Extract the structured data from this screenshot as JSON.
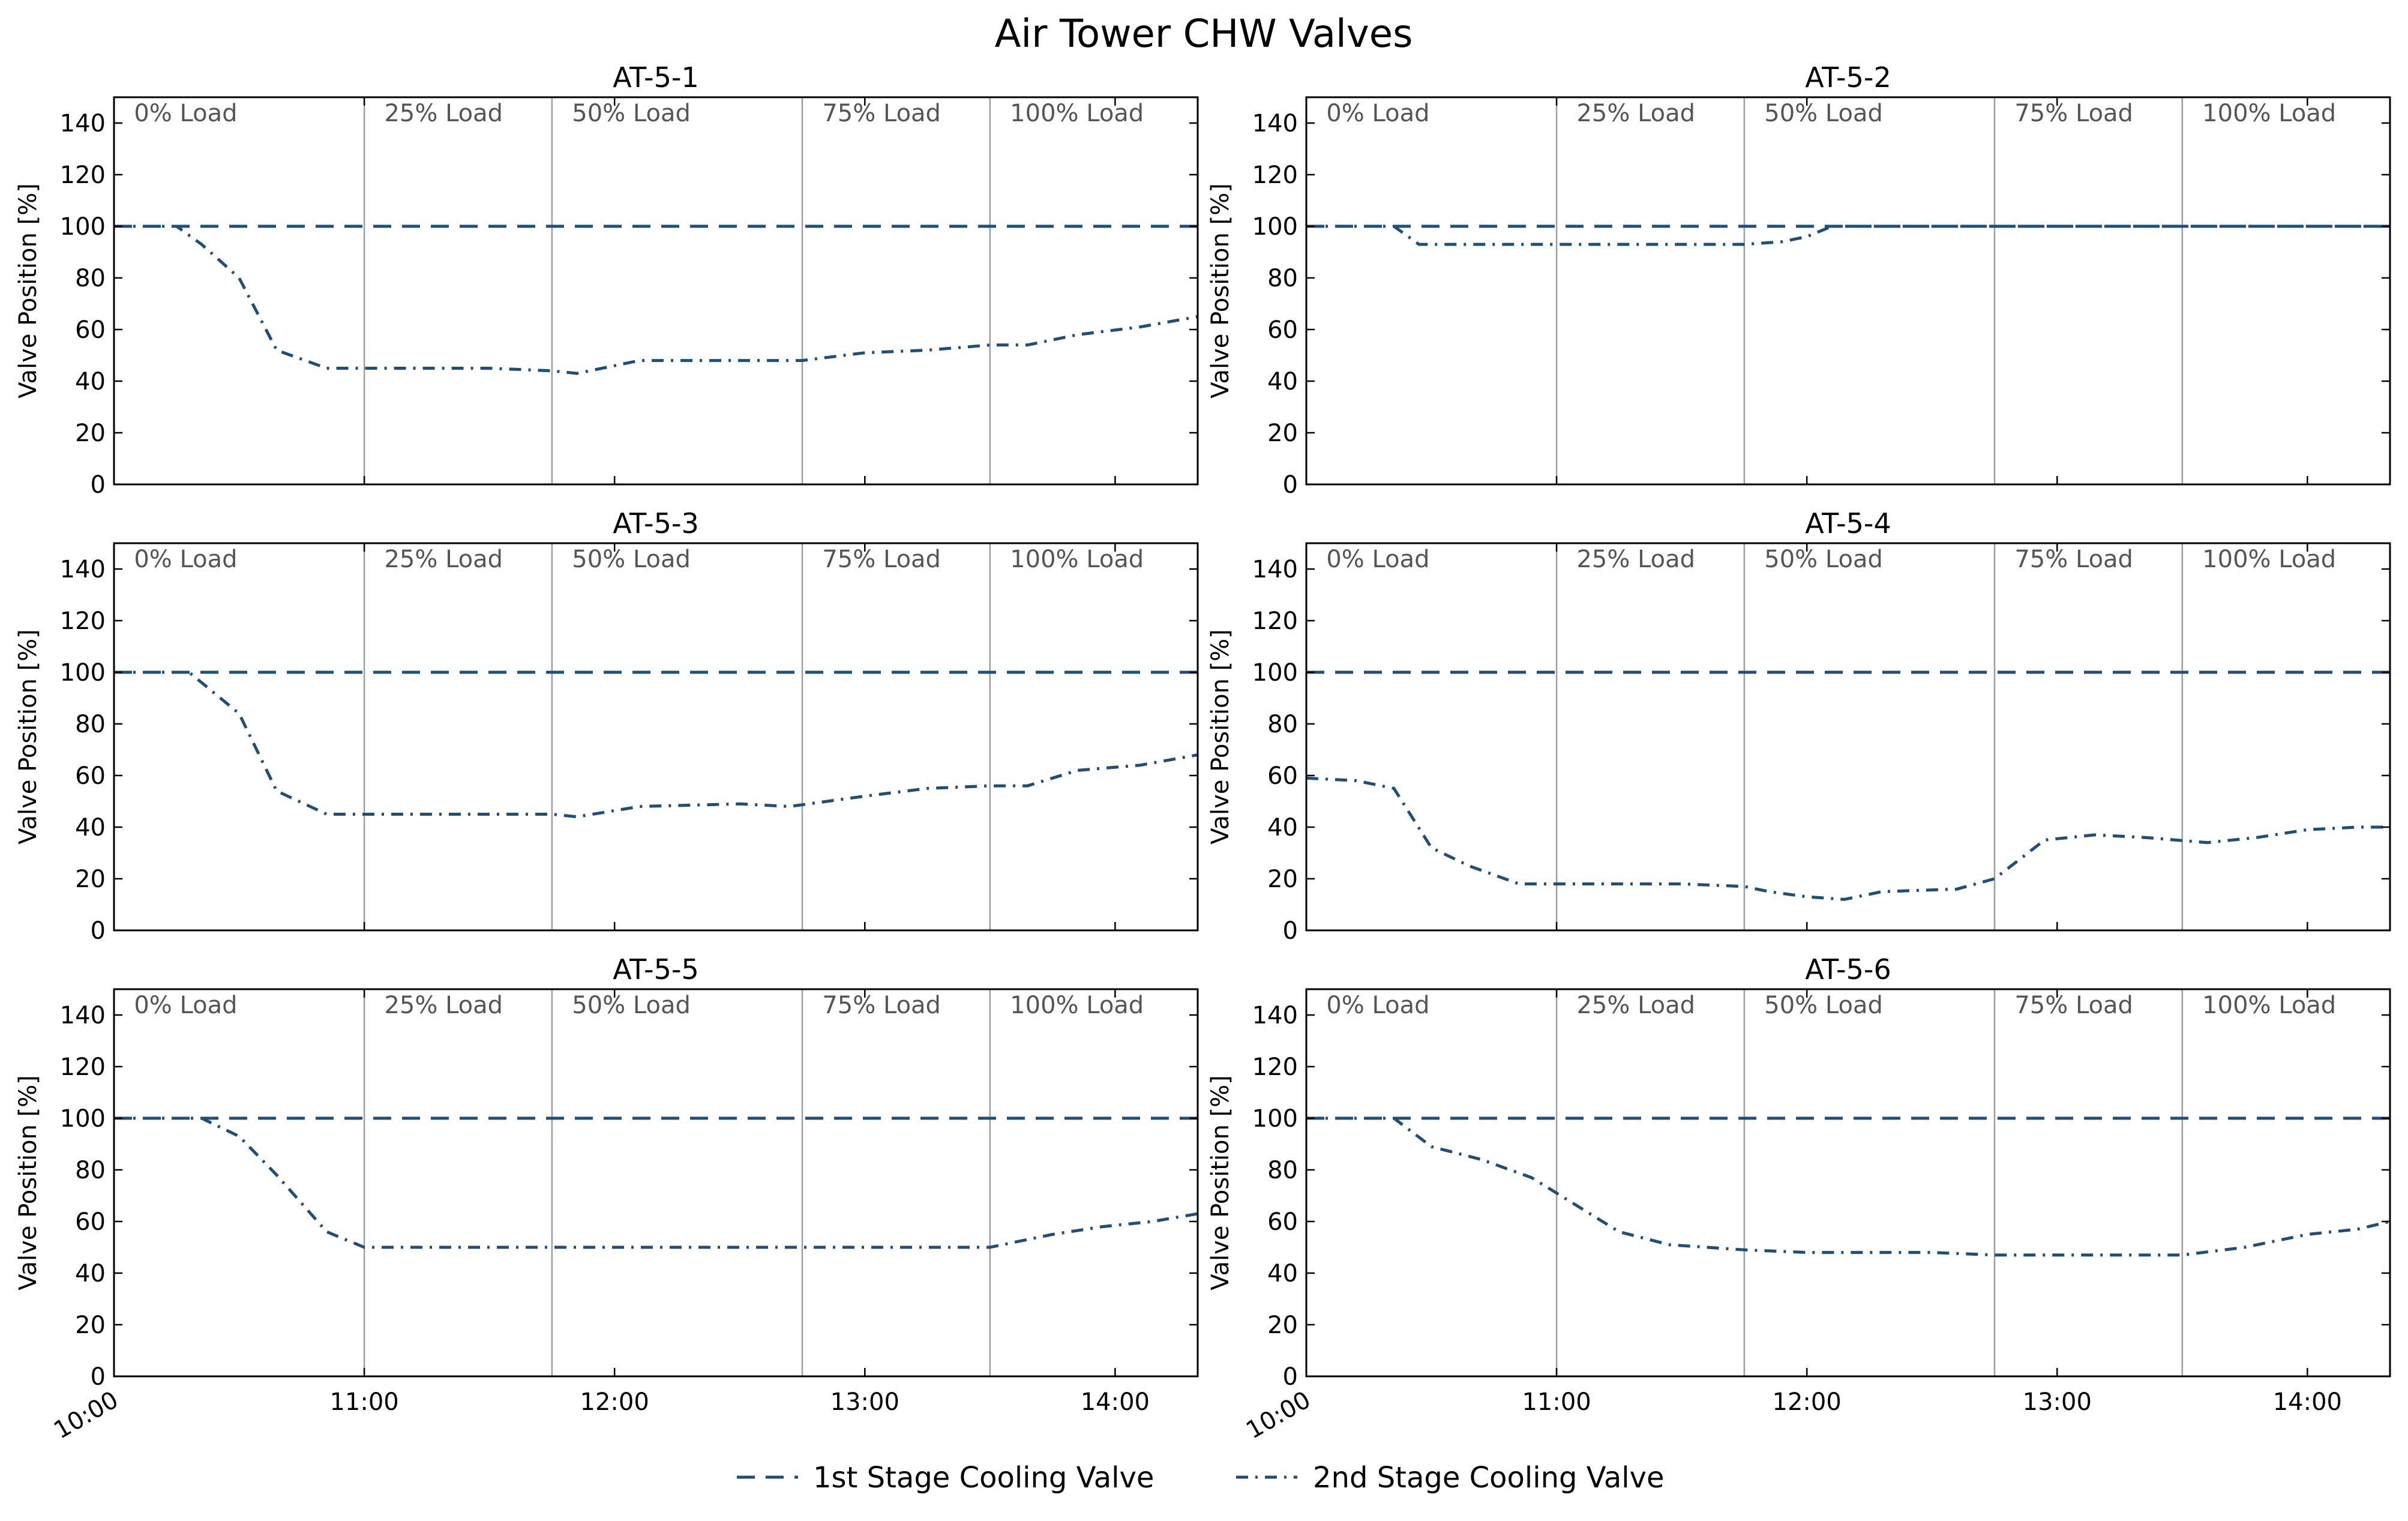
{
  "chart_data": {
    "title": "Air Tower CHW Valves",
    "type": "line",
    "ylabel": "Valve Position [%]",
    "ylim": [
      0,
      150
    ],
    "yticks": [
      0,
      20,
      40,
      60,
      80,
      100,
      120,
      140
    ],
    "xlim_hours": [
      10.0,
      14.33
    ],
    "xticks": [
      {
        "v": 10,
        "label": "10:00",
        "rotated": true
      },
      {
        "v": 11,
        "label": "11:00",
        "rotated": false
      },
      {
        "v": 12,
        "label": "12:00",
        "rotated": false
      },
      {
        "v": 13,
        "label": "13:00",
        "rotated": false
      },
      {
        "v": 14,
        "label": "14:00",
        "rotated": false
      }
    ],
    "load_lines": [
      11.0,
      11.75,
      12.75,
      13.5
    ],
    "load_labels": [
      {
        "x": 10.08,
        "text": "0% Load"
      },
      {
        "x": 11.08,
        "text": "25% Load"
      },
      {
        "x": 11.83,
        "text": "50% Load"
      },
      {
        "x": 12.83,
        "text": "75% Load"
      },
      {
        "x": 13.58,
        "text": "100% Load"
      }
    ],
    "series_names": [
      "1st Stage Cooling Valve",
      "2nd Stage Cooling Valve"
    ],
    "color": "#1f4e79",
    "grid": false,
    "legend_position": "bottom-center",
    "subplots": [
      {
        "title": "AT-5-1",
        "stage1": [
          [
            10.0,
            100
          ],
          [
            14.33,
            100
          ]
        ],
        "stage2": [
          [
            10.0,
            100
          ],
          [
            10.25,
            100
          ],
          [
            10.35,
            93
          ],
          [
            10.5,
            80
          ],
          [
            10.65,
            52
          ],
          [
            10.85,
            45
          ],
          [
            11.25,
            45
          ],
          [
            11.5,
            45
          ],
          [
            11.75,
            44
          ],
          [
            11.85,
            43
          ],
          [
            12.1,
            48
          ],
          [
            12.5,
            48
          ],
          [
            12.75,
            48
          ],
          [
            13.0,
            51
          ],
          [
            13.25,
            52
          ],
          [
            13.5,
            54
          ],
          [
            13.65,
            54
          ],
          [
            13.85,
            58
          ],
          [
            14.1,
            61
          ],
          [
            14.33,
            65
          ]
        ]
      },
      {
        "title": "AT-5-2",
        "stage1": [
          [
            10.0,
            100
          ],
          [
            14.33,
            100
          ]
        ],
        "stage2": [
          [
            10.0,
            100
          ],
          [
            10.35,
            100
          ],
          [
            10.45,
            93
          ],
          [
            10.7,
            93
          ],
          [
            11.5,
            93
          ],
          [
            11.75,
            93
          ],
          [
            11.9,
            94
          ],
          [
            12.0,
            96
          ],
          [
            12.1,
            100
          ],
          [
            14.33,
            100
          ]
        ]
      },
      {
        "title": "AT-5-3",
        "stage1": [
          [
            10.0,
            100
          ],
          [
            14.33,
            100
          ]
        ],
        "stage2": [
          [
            10.0,
            100
          ],
          [
            10.3,
            100
          ],
          [
            10.35,
            96
          ],
          [
            10.5,
            84
          ],
          [
            10.65,
            54
          ],
          [
            10.85,
            45
          ],
          [
            11.25,
            45
          ],
          [
            11.5,
            45
          ],
          [
            11.75,
            45
          ],
          [
            11.85,
            44
          ],
          [
            12.1,
            48
          ],
          [
            12.5,
            49
          ],
          [
            12.7,
            48
          ],
          [
            13.0,
            52
          ],
          [
            13.25,
            55
          ],
          [
            13.5,
            56
          ],
          [
            13.65,
            56
          ],
          [
            13.85,
            62
          ],
          [
            14.1,
            64
          ],
          [
            14.33,
            68
          ]
        ]
      },
      {
        "title": "AT-5-4",
        "stage1": [
          [
            10.0,
            100
          ],
          [
            14.33,
            100
          ]
        ],
        "stage2": [
          [
            10.0,
            59
          ],
          [
            10.2,
            58
          ],
          [
            10.35,
            55
          ],
          [
            10.5,
            32
          ],
          [
            10.65,
            25
          ],
          [
            10.85,
            18
          ],
          [
            11.5,
            18
          ],
          [
            11.75,
            17
          ],
          [
            11.85,
            15
          ],
          [
            12.0,
            13
          ],
          [
            12.15,
            12
          ],
          [
            12.3,
            15
          ],
          [
            12.6,
            16
          ],
          [
            12.75,
            20
          ],
          [
            12.95,
            35
          ],
          [
            13.15,
            37
          ],
          [
            13.35,
            36
          ],
          [
            13.6,
            34
          ],
          [
            13.8,
            36
          ],
          [
            14.0,
            39
          ],
          [
            14.2,
            40
          ],
          [
            14.33,
            40
          ]
        ]
      },
      {
        "title": "AT-5-5",
        "stage1": [
          [
            10.0,
            100
          ],
          [
            14.33,
            100
          ]
        ],
        "stage2": [
          [
            10.0,
            100
          ],
          [
            10.35,
            100
          ],
          [
            10.5,
            93
          ],
          [
            10.65,
            78
          ],
          [
            10.85,
            56
          ],
          [
            11.0,
            50
          ],
          [
            11.5,
            50
          ],
          [
            12.0,
            50
          ],
          [
            12.5,
            50
          ],
          [
            13.0,
            50
          ],
          [
            13.5,
            50
          ],
          [
            13.75,
            55
          ],
          [
            13.95,
            58
          ],
          [
            14.15,
            60
          ],
          [
            14.33,
            63
          ]
        ]
      },
      {
        "title": "AT-5-6",
        "stage1": [
          [
            10.0,
            100
          ],
          [
            14.33,
            100
          ]
        ],
        "stage2": [
          [
            10.0,
            100
          ],
          [
            10.35,
            100
          ],
          [
            10.5,
            89
          ],
          [
            10.7,
            84
          ],
          [
            10.9,
            77
          ],
          [
            11.05,
            68
          ],
          [
            11.25,
            56
          ],
          [
            11.45,
            51
          ],
          [
            11.75,
            49
          ],
          [
            12.0,
            48
          ],
          [
            12.5,
            48
          ],
          [
            12.75,
            47
          ],
          [
            13.0,
            47
          ],
          [
            13.5,
            47
          ],
          [
            13.75,
            50
          ],
          [
            14.0,
            55
          ],
          [
            14.2,
            57
          ],
          [
            14.33,
            60
          ]
        ]
      }
    ]
  }
}
